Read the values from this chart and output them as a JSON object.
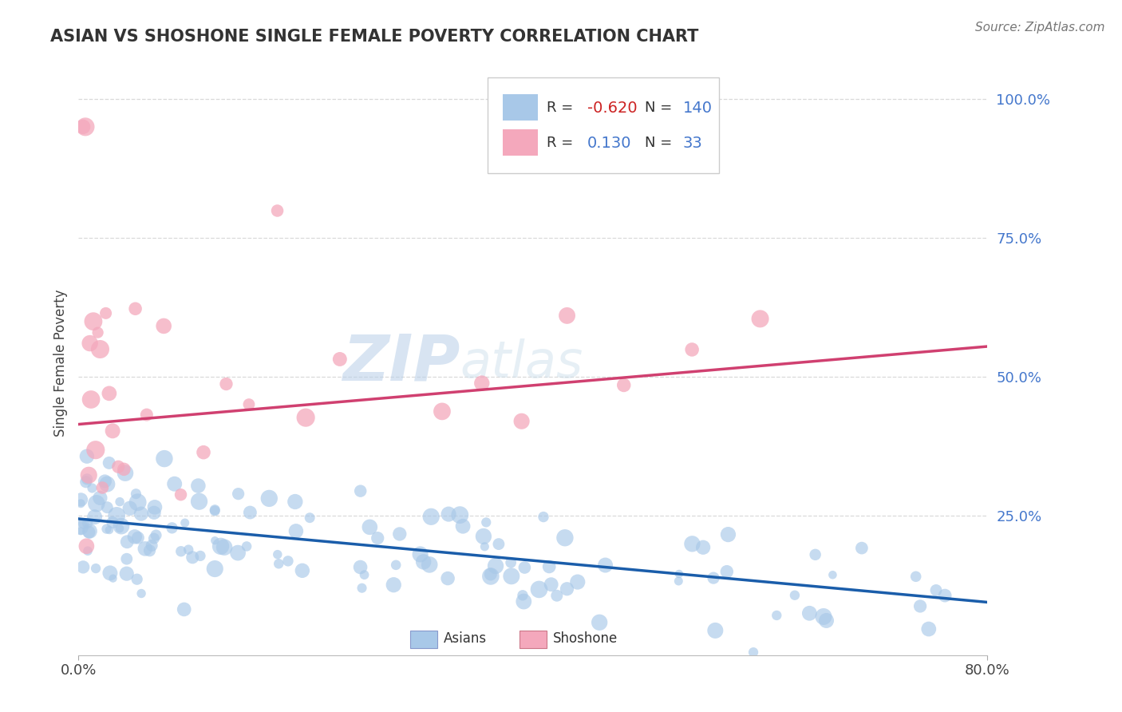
{
  "title": "ASIAN VS SHOSHONE SINGLE FEMALE POVERTY CORRELATION CHART",
  "source": "Source: ZipAtlas.com",
  "ylabel": "Single Female Poverty",
  "xlim": [
    0.0,
    0.8
  ],
  "ylim": [
    0.0,
    1.05
  ],
  "ytick_positions": [
    0.25,
    0.5,
    0.75,
    1.0
  ],
  "asian_R": "-0.620",
  "asian_N": "140",
  "shoshone_R": "0.130",
  "shoshone_N": "33",
  "asian_color": "#a8c8e8",
  "shoshone_color": "#f4a8bc",
  "asian_line_color": "#1a5daa",
  "shoshone_line_color": "#d04070",
  "label_color": "#4477cc",
  "neg_r_color": "#cc2222",
  "background_color": "#ffffff",
  "grid_color": "#d0d0d0",
  "watermark_color": "#d0e4f0",
  "asian_trend_x": [
    0.0,
    0.8
  ],
  "asian_trend_y": [
    0.245,
    0.095
  ],
  "shoshone_trend_x": [
    0.0,
    0.8
  ],
  "shoshone_trend_y": [
    0.415,
    0.555
  ]
}
